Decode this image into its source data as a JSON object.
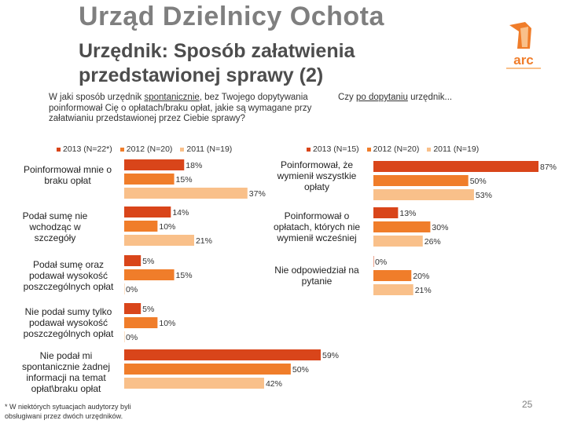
{
  "header": {
    "title": "Urząd Dzielnicy Ochota",
    "subtitle": "Urzędnik: Sposób załatwienia przedstawionej sprawy (2)"
  },
  "logo": {
    "text": "arc"
  },
  "questions": {
    "left_pre": "W jaki sposób urzędnik ",
    "left_underlined": "spontanicznie",
    "left_post": ", bez Twojego dopytywania poinformował Cię o opłatach/braku opłat, jakie są wymagane przy załatwianiu przedstawionej przez Ciebie sprawy?",
    "right_pre": "Czy ",
    "right_underlined": "po dopytaniu",
    "right_post": " urzędnik..."
  },
  "colors": {
    "2013": "#d9451a",
    "2012": "#f07d2a",
    "2011": "#f9c08a"
  },
  "chart_data": [
    {
      "type": "bar",
      "orientation": "horizontal",
      "title": "",
      "legend": [
        "2013 (N=22*)",
        "2012 (N=20)",
        "2011 (N=19)"
      ],
      "categories": [
        "Poinformował mnie o braku opłat",
        "Podał sumę nie wchodząc w szczegóły",
        "Podał sumę oraz podawał wysokość poszczególnych opłat",
        "Nie podał sumy tylko podawał wysokość poszczególnych opłat",
        "Nie podał mi spontanicznie żadnej informacji na temat opłat\\braku opłat"
      ],
      "series": [
        {
          "name": "2013 (N=22*)",
          "values": [
            18,
            14,
            5,
            5,
            59
          ]
        },
        {
          "name": "2012 (N=20)",
          "values": [
            15,
            10,
            15,
            10,
            50
          ]
        },
        {
          "name": "2011 (N=19)",
          "values": [
            37,
            21,
            0,
            0,
            42
          ]
        }
      ],
      "unit": "%",
      "xlim": [
        0,
        100
      ]
    },
    {
      "type": "bar",
      "orientation": "horizontal",
      "title": "",
      "legend": [
        "2013 (N=15)",
        "2012 (N=20)",
        "2011 (N=19)"
      ],
      "categories": [
        "Poinformował, że wymienił wszystkie opłaty",
        "Poinformował o opłatach, których nie wymienił wcześniej",
        "Nie odpowiedział na pytanie"
      ],
      "series": [
        {
          "name": "2013 (N=15)",
          "values": [
            87,
            13,
            0
          ]
        },
        {
          "name": "2012 (N=20)",
          "values": [
            50,
            30,
            20
          ]
        },
        {
          "name": "2011 (N=19)",
          "values": [
            53,
            26,
            21
          ]
        }
      ],
      "unit": "%",
      "xlim": [
        0,
        100
      ]
    }
  ],
  "footnote": "* W niektórych sytuacjach audytorzy byli obsługiwani przez dwóch urzędników.",
  "page_number": "25"
}
